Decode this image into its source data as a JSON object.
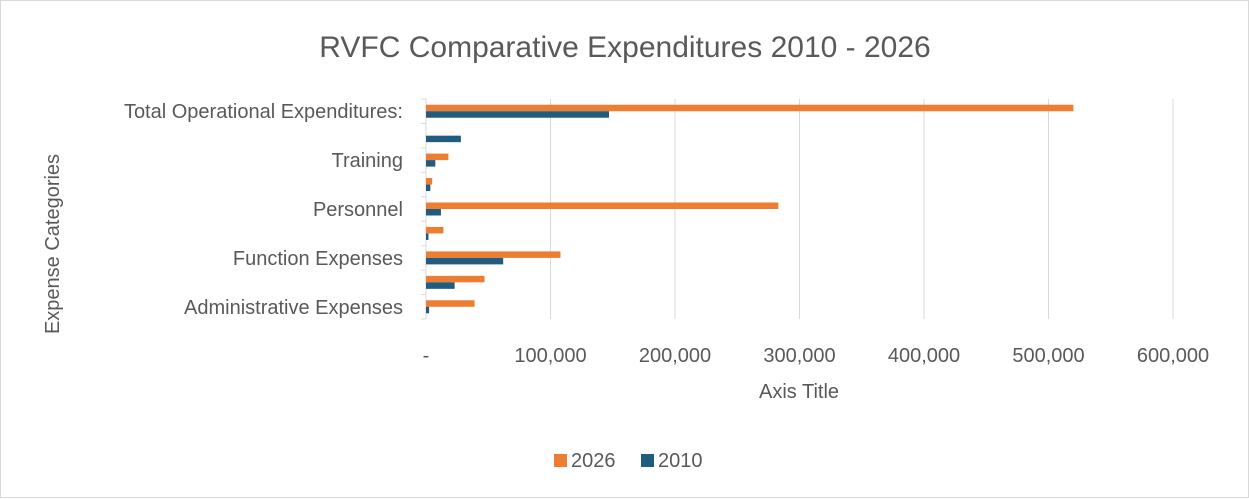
{
  "chart_data": {
    "type": "bar",
    "orientation": "horizontal",
    "title": "RVFC Comparative Expenditures 2010 - 2026",
    "xlabel": "Axis Title",
    "ylabel": "Expense Categories",
    "xlim": [
      0,
      600000
    ],
    "x_ticks": [
      0,
      100000,
      200000,
      300000,
      400000,
      500000,
      600000
    ],
    "x_tick_labels": [
      "-",
      "100,000",
      "200,000",
      "300,000",
      "400,000",
      "500,000",
      "600,000"
    ],
    "grid": "vertical",
    "legend_position": "bottom",
    "categories": [
      "Administrative Expenses",
      "",
      "Function Expenses",
      "",
      "Personnel",
      "",
      "Training",
      "",
      "Total Operational Expenditures:"
    ],
    "series": [
      {
        "name": "2026",
        "color": "#ed7d31",
        "values": [
          39000,
          47000,
          108000,
          14000,
          283000,
          5000,
          18000,
          0,
          520000
        ]
      },
      {
        "name": "2010",
        "color": "#1f5c7f",
        "values": [
          2500,
          23000,
          62000,
          2000,
          12000,
          3500,
          7500,
          28000,
          147000
        ]
      }
    ]
  }
}
